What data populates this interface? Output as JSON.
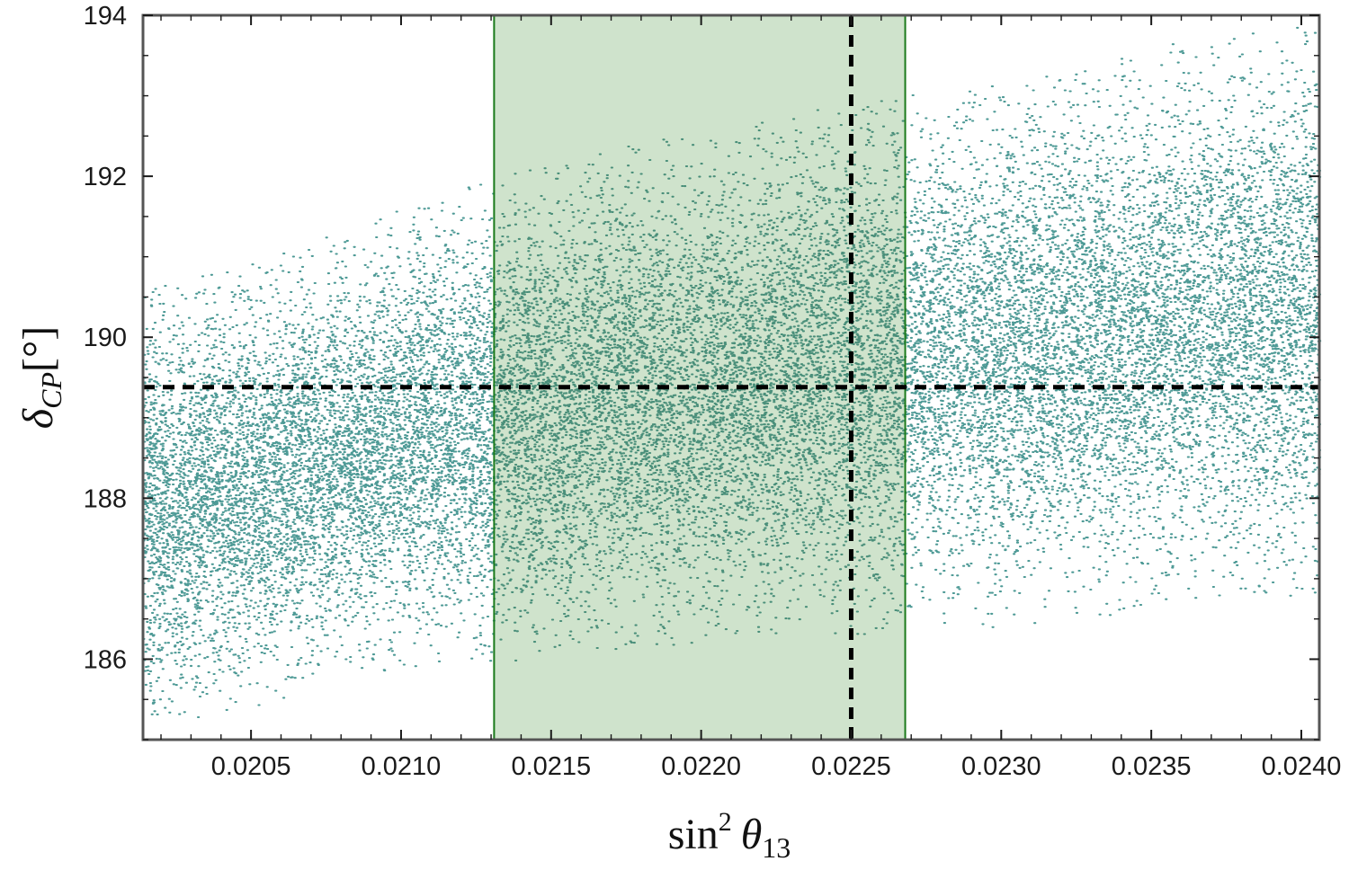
{
  "chart_data": {
    "type": "scatter",
    "title": "",
    "xlabel": {
      "base": "sin",
      "sup": "2",
      "symbol": "θ",
      "sub": "13"
    },
    "ylabel": {
      "symbol": "δ",
      "sub": "CP",
      "unit": "[°]"
    },
    "xlim": [
      0.02014,
      0.02406
    ],
    "ylim": [
      185.0,
      194.0
    ],
    "x_ticks": [
      {
        "value": 0.0205,
        "label": "0.0205"
      },
      {
        "value": 0.021,
        "label": "0.0210"
      },
      {
        "value": 0.0215,
        "label": "0.0215"
      },
      {
        "value": 0.022,
        "label": "0.0220"
      },
      {
        "value": 0.0225,
        "label": "0.0225"
      },
      {
        "value": 0.023,
        "label": "0.0230"
      },
      {
        "value": 0.0235,
        "label": "0.0235"
      },
      {
        "value": 0.024,
        "label": "0.0240"
      }
    ],
    "y_ticks": [
      {
        "value": 186,
        "label": "186"
      },
      {
        "value": 188,
        "label": "188"
      },
      {
        "value": 190,
        "label": "190"
      },
      {
        "value": 192,
        "label": "192"
      },
      {
        "value": 194,
        "label": "194"
      }
    ],
    "grid": false,
    "band": {
      "x_from": 0.02131,
      "x_to": 0.02268,
      "fill_color": "#cfe3cc",
      "edge_color": "#1a7a1a"
    },
    "reference_lines": {
      "x": 0.0225,
      "y": 189.38,
      "color": "#000000"
    },
    "series": [
      {
        "color": "#4e9a96",
        "band_color": "#4a8f7a",
        "point_count": 26000,
        "envelope_x": [
          0.02014,
          0.0205,
          0.021,
          0.0215,
          0.022,
          0.0225,
          0.023,
          0.0235,
          0.024,
          0.02406
        ],
        "envelope_y_min": [
          185.1,
          185.4,
          185.9,
          186.0,
          186.2,
          186.3,
          186.4,
          186.6,
          186.8,
          186.8
        ],
        "envelope_y_max": [
          190.6,
          190.9,
          191.6,
          192.2,
          192.6,
          192.9,
          193.2,
          193.6,
          193.9,
          193.9
        ]
      }
    ]
  }
}
